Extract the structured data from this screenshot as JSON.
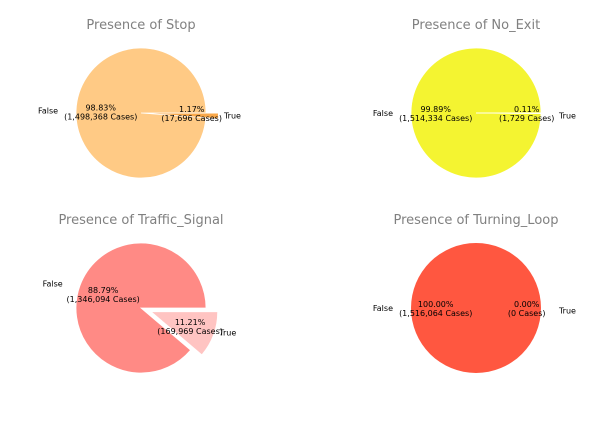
{
  "chart_data": [
    {
      "type": "pie",
      "title": "Presence of Stop",
      "slices": [
        {
          "label": "False",
          "percent_text": "98.83%",
          "count_text": "(1,498,368 Cases)",
          "value": 98.83,
          "color": "#FFCA85"
        },
        {
          "label": "True",
          "percent_text": "1.17%",
          "count_text": "(17,696 Cases)",
          "value": 1.17,
          "color": "#F9A84A",
          "exploded": true
        }
      ]
    },
    {
      "type": "pie",
      "title": "Presence of No_Exit",
      "slices": [
        {
          "label": "False",
          "percent_text": "99.89%",
          "count_text": "(1,514,334 Cases)",
          "value": 99.89,
          "color": "#F4F431"
        },
        {
          "label": "True",
          "percent_text": "0.11%",
          "count_text": "(1,729 Cases)",
          "value": 0.11,
          "color": "#F4F431"
        }
      ]
    },
    {
      "type": "pie",
      "title": "Presence of Traffic_Signal",
      "slices": [
        {
          "label": "False",
          "percent_text": "88.79%",
          "count_text": "(1,346,094 Cases)",
          "value": 88.79,
          "color": "#FF8A85"
        },
        {
          "label": "True",
          "percent_text": "11.21%",
          "count_text": "(169,969 Cases)",
          "value": 11.21,
          "color": "#FFC4C2",
          "exploded": true
        }
      ]
    },
    {
      "type": "pie",
      "title": "Presence of Turning_Loop",
      "slices": [
        {
          "label": "False",
          "percent_text": "100.00%",
          "count_text": "(1,516,064 Cases)",
          "value": 100.0,
          "color": "#FF5740"
        },
        {
          "label": "True",
          "percent_text": "0.00%",
          "count_text": "(0 Cases)",
          "value": 0.0,
          "color": "#FF5740"
        }
      ]
    }
  ]
}
